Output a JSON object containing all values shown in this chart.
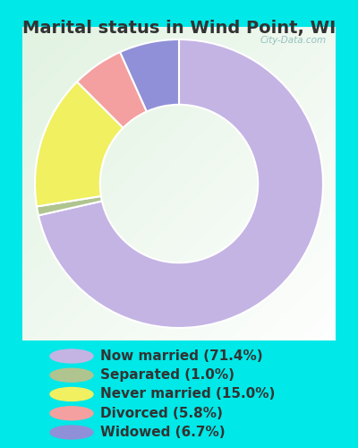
{
  "title": "Marital status in Wind Point, WI",
  "slices": [
    {
      "label": "Now married (71.4%)",
      "value": 71.4,
      "color": "#c4b4e4"
    },
    {
      "label": "Separated (1.0%)",
      "value": 1.0,
      "color": "#b0c490"
    },
    {
      "label": "Never married (15.0%)",
      "value": 15.0,
      "color": "#f0f060"
    },
    {
      "label": "Divorced (5.8%)",
      "value": 5.8,
      "color": "#f4a0a0"
    },
    {
      "label": "Widowed (6.7%)",
      "value": 6.7,
      "color": "#9090d8"
    }
  ],
  "bg_outer": "#00e8e8",
  "title_color": "#333333",
  "title_fontsize": 14,
  "legend_fontsize": 11,
  "watermark": "City-Data.com",
  "startangle": 90,
  "donut_width": 0.52
}
